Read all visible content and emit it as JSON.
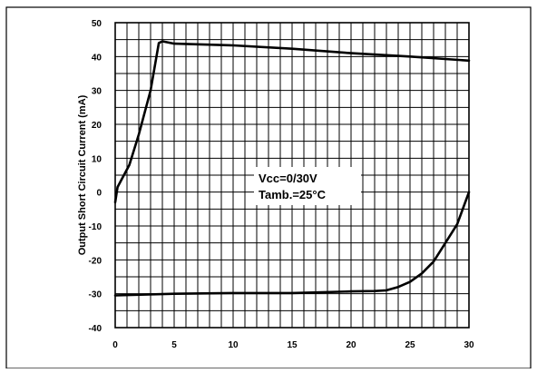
{
  "chart_data": {
    "type": "line",
    "title": "",
    "xlabel": "",
    "ylabel": "Output Short Circuit Current (mA)",
    "xlim": [
      0,
      30
    ],
    "ylim": [
      -40,
      50
    ],
    "grid": true,
    "x_ticks": [
      0,
      5,
      10,
      15,
      20,
      25,
      30
    ],
    "y_ticks": [
      50,
      40,
      30,
      20,
      10,
      0,
      -10,
      -20,
      -30,
      -40
    ],
    "annotations": [
      "Vcc=0/30V",
      "Tamb.=25°C"
    ],
    "series": [
      {
        "x": [
          0,
          0.2,
          1.2,
          2,
          3,
          3.7,
          4,
          5,
          10,
          15,
          20,
          25,
          30
        ],
        "y": [
          -3,
          1.5,
          8,
          17,
          30,
          44,
          44.5,
          43.8,
          43.3,
          42.3,
          41,
          40,
          38.8
        ]
      },
      {
        "x": [
          0,
          5,
          10,
          15,
          20,
          22,
          23,
          24,
          25,
          26,
          27,
          28,
          29,
          30
        ],
        "y": [
          -30.5,
          -30,
          -29.8,
          -29.8,
          -29.3,
          -29.2,
          -29,
          -28,
          -26.5,
          -24,
          -20.5,
          -15,
          -9.5,
          0
        ]
      }
    ]
  }
}
